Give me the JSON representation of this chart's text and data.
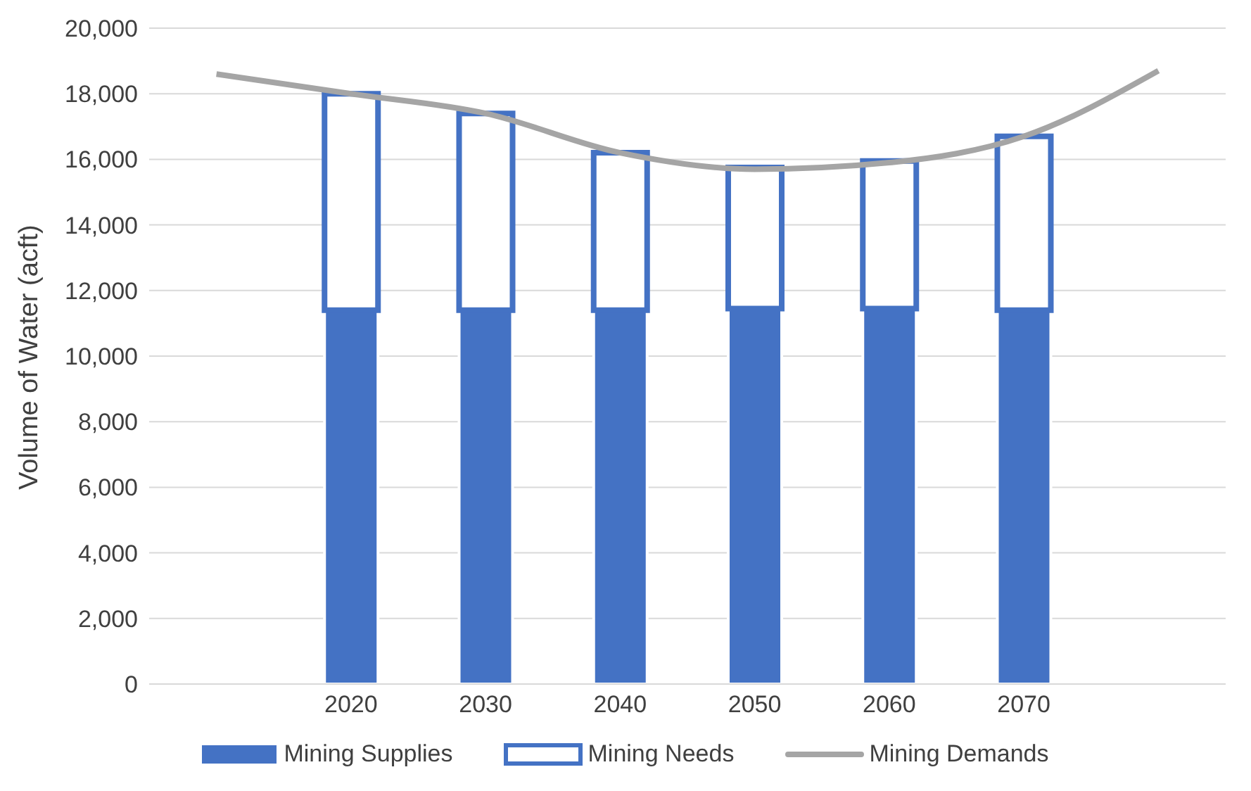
{
  "chart_data": {
    "type": "bar",
    "stacked": true,
    "ylabel": "Volume of Water (acft)",
    "categories": [
      null,
      "2020",
      "2030",
      "2040",
      "2050",
      "2060",
      "2070",
      null
    ],
    "series": [
      {
        "name": "Mining Supplies",
        "color": "#4472c4",
        "values": [
          null,
          11400,
          11400,
          11400,
          11450,
          11450,
          11400,
          null
        ]
      },
      {
        "name": "Mining Needs",
        "color": "#ffffff",
        "values": [
          null,
          6600,
          6000,
          4800,
          4300,
          4500,
          5300,
          null
        ]
      },
      {
        "name": "Mining Demands",
        "type": "line",
        "color": "#a5a5a5",
        "values": [
          18600,
          18000,
          17400,
          16200,
          15700,
          15900,
          16700,
          18700
        ]
      }
    ],
    "ylim": [
      0,
      20000
    ],
    "yticks": [
      0,
      {
        "value": 2000,
        "label": "2,000"
      },
      {
        "value": 4000,
        "label": "4,000"
      },
      {
        "value": 6000,
        "label": "6,000"
      },
      {
        "value": 8000,
        "label": "8,000"
      },
      {
        "value": 10000,
        "label": "10,000"
      },
      {
        "value": 12000,
        "label": "12,000"
      },
      {
        "value": 14000,
        "label": "14,000"
      },
      {
        "value": 16000,
        "label": "16,000"
      },
      {
        "value": 18000,
        "label": "18,000"
      },
      {
        "value": 20000,
        "label": "20,000"
      }
    ],
    "grid": "y",
    "legend": "bottom",
    "marker": "none"
  }
}
